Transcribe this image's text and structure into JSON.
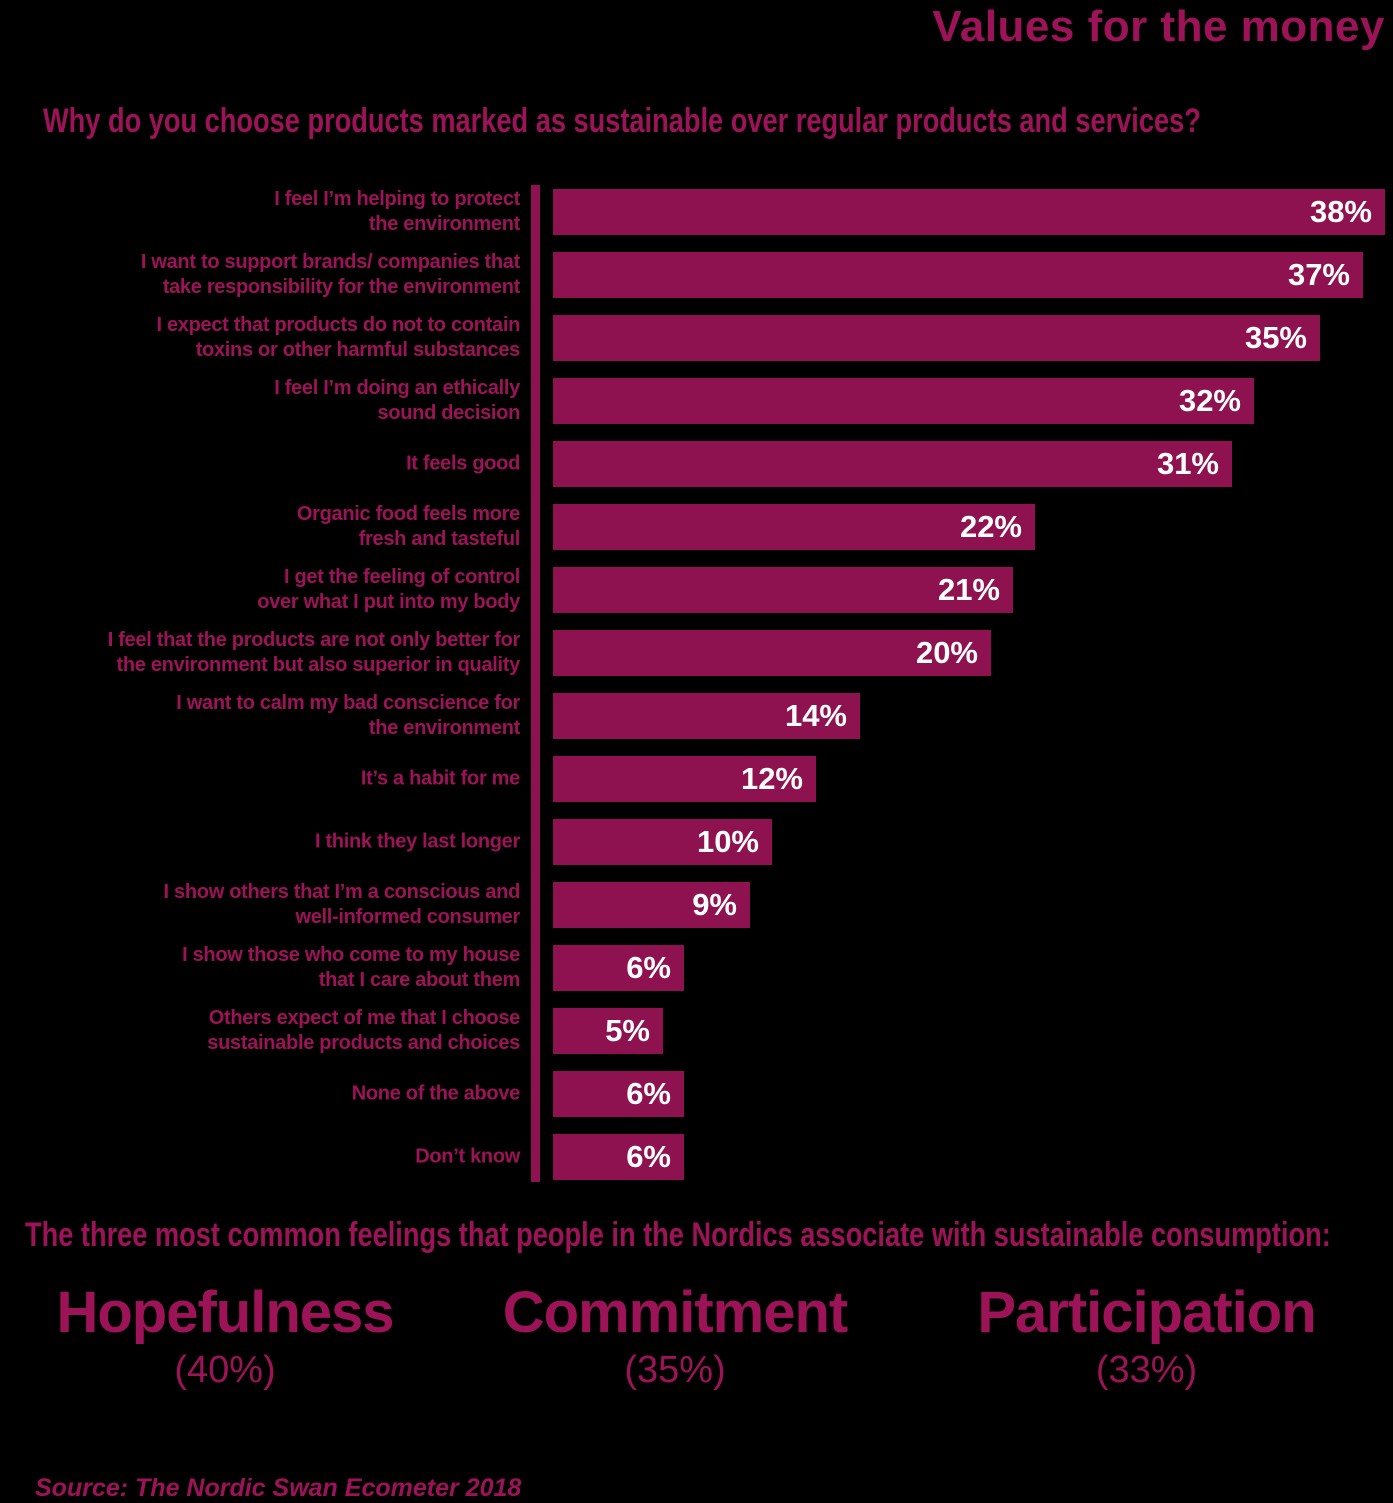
{
  "title": "Values for the money",
  "question": "Why do you choose products marked as sustainable over regular products and services?",
  "chart_data": {
    "type": "bar",
    "orientation": "horizontal",
    "title": "Values for the money",
    "xlabel": "",
    "ylabel": "",
    "unit": "%",
    "xlim": [
      0,
      40
    ],
    "grid": false,
    "legend": false,
    "axis_line": "left-vertical",
    "categories": [
      "I feel I’m helping to protect\nthe environment",
      "I want to support brands/ companies that\ntake responsibility for the environment",
      "I expect that products do not to contain\ntoxins or other harmful substances",
      "I feel I’m doing an ethically\nsound decision",
      "It feels good",
      "Organic food feels more\nfresh and tasteful",
      "I get the feeling of control\nover what I put into my body",
      "I feel that the products are not only better for\nthe environment but also superior in quality",
      "I want to calm my bad conscience for\nthe environment",
      "It’s a habit for me",
      "I think they last longer",
      "I show others that I’m a conscious and\nwell-informed consumer",
      "I show those who come to my house\nthat I care about them",
      "Others expect of me that I choose\nsustainable products and choices",
      "None of the above",
      "Don’t know"
    ],
    "values": [
      38,
      37,
      35,
      32,
      31,
      22,
      21,
      20,
      14,
      12,
      10,
      9,
      6,
      5,
      6,
      6
    ],
    "value_labels": [
      "38%",
      "37%",
      "35%",
      "32%",
      "31%",
      "22%",
      "21%",
      "20%",
      "14%",
      "12%",
      "10%",
      "9%",
      "6%",
      "5%",
      "6%",
      "6%"
    ]
  },
  "footer": {
    "heading": "The three most common feelings that people in the Nordics associate with sustainable consumption:",
    "feelings": [
      {
        "name": "Hopefulness",
        "share": "(40%)"
      },
      {
        "name": "Commitment",
        "share": "(35%)"
      },
      {
        "name": "Participation",
        "share": "(33%)"
      }
    ],
    "source": "Source: The Nordic Swan Ecometer 2018"
  },
  "colors": {
    "background": "#000000",
    "bar": "#8E1150",
    "text": "#9D1357",
    "value_text": "#FFFFFF"
  }
}
